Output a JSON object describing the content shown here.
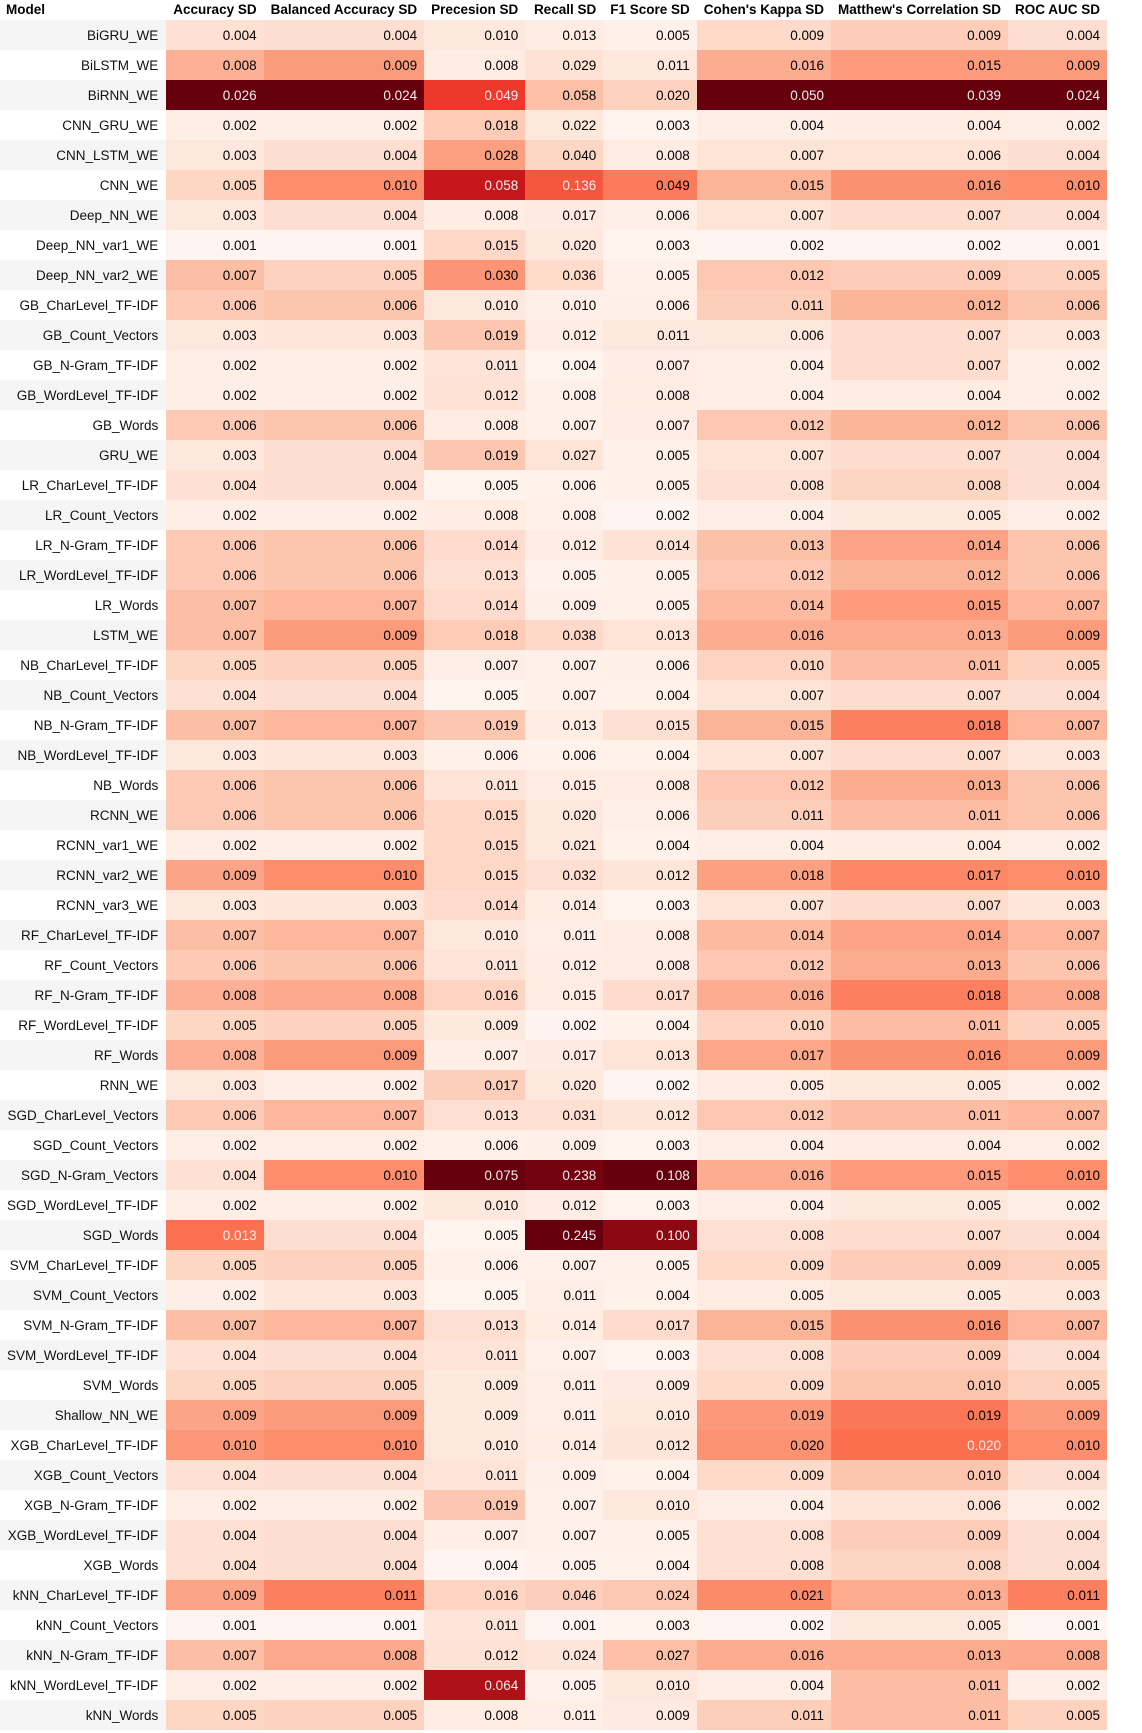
{
  "chart_data": {
    "type": "table",
    "columns": [
      "Model",
      "Accuracy SD",
      "Balanced Accuracy SD",
      "Precesion SD",
      "Recall SD",
      "F1 Score SD",
      "Cohen's Kappa SD",
      "Matthew's Correlation SD",
      "ROC AUC SD"
    ],
    "rows": [
      [
        "BiGRU_WE",
        "0.004",
        "0.004",
        "0.010",
        "0.013",
        "0.005",
        "0.009",
        "0.009",
        "0.004"
      ],
      [
        "BiLSTM_WE",
        "0.008",
        "0.009",
        "0.008",
        "0.029",
        "0.011",
        "0.016",
        "0.015",
        "0.009"
      ],
      [
        "BiRNN_WE",
        "0.026",
        "0.024",
        "0.049",
        "0.058",
        "0.020",
        "0.050",
        "0.039",
        "0.024"
      ],
      [
        "CNN_GRU_WE",
        "0.002",
        "0.002",
        "0.018",
        "0.022",
        "0.003",
        "0.004",
        "0.004",
        "0.002"
      ],
      [
        "CNN_LSTM_WE",
        "0.003",
        "0.004",
        "0.028",
        "0.040",
        "0.008",
        "0.007",
        "0.006",
        "0.004"
      ],
      [
        "CNN_WE",
        "0.005",
        "0.010",
        "0.058",
        "0.136",
        "0.049",
        "0.015",
        "0.016",
        "0.010"
      ],
      [
        "Deep_NN_WE",
        "0.003",
        "0.004",
        "0.008",
        "0.017",
        "0.006",
        "0.007",
        "0.007",
        "0.004"
      ],
      [
        "Deep_NN_var1_WE",
        "0.001",
        "0.001",
        "0.015",
        "0.020",
        "0.003",
        "0.002",
        "0.002",
        "0.001"
      ],
      [
        "Deep_NN_var2_WE",
        "0.007",
        "0.005",
        "0.030",
        "0.036",
        "0.005",
        "0.012",
        "0.009",
        "0.005"
      ],
      [
        "GB_CharLevel_TF-IDF",
        "0.006",
        "0.006",
        "0.010",
        "0.010",
        "0.006",
        "0.011",
        "0.012",
        "0.006"
      ],
      [
        "GB_Count_Vectors",
        "0.003",
        "0.003",
        "0.019",
        "0.012",
        "0.011",
        "0.006",
        "0.007",
        "0.003"
      ],
      [
        "GB_N-Gram_TF-IDF",
        "0.002",
        "0.002",
        "0.011",
        "0.004",
        "0.007",
        "0.004",
        "0.007",
        "0.002"
      ],
      [
        "GB_WordLevel_TF-IDF",
        "0.002",
        "0.002",
        "0.012",
        "0.008",
        "0.008",
        "0.004",
        "0.004",
        "0.002"
      ],
      [
        "GB_Words",
        "0.006",
        "0.006",
        "0.008",
        "0.007",
        "0.007",
        "0.012",
        "0.012",
        "0.006"
      ],
      [
        "GRU_WE",
        "0.003",
        "0.004",
        "0.019",
        "0.027",
        "0.005",
        "0.007",
        "0.007",
        "0.004"
      ],
      [
        "LR_CharLevel_TF-IDF",
        "0.004",
        "0.004",
        "0.005",
        "0.006",
        "0.005",
        "0.008",
        "0.008",
        "0.004"
      ],
      [
        "LR_Count_Vectors",
        "0.002",
        "0.002",
        "0.008",
        "0.008",
        "0.002",
        "0.004",
        "0.005",
        "0.002"
      ],
      [
        "LR_N-Gram_TF-IDF",
        "0.006",
        "0.006",
        "0.014",
        "0.012",
        "0.014",
        "0.013",
        "0.014",
        "0.006"
      ],
      [
        "LR_WordLevel_TF-IDF",
        "0.006",
        "0.006",
        "0.013",
        "0.005",
        "0.005",
        "0.012",
        "0.012",
        "0.006"
      ],
      [
        "LR_Words",
        "0.007",
        "0.007",
        "0.014",
        "0.009",
        "0.005",
        "0.014",
        "0.015",
        "0.007"
      ],
      [
        "LSTM_WE",
        "0.007",
        "0.009",
        "0.018",
        "0.038",
        "0.013",
        "0.016",
        "0.013",
        "0.009"
      ],
      [
        "NB_CharLevel_TF-IDF",
        "0.005",
        "0.005",
        "0.007",
        "0.007",
        "0.006",
        "0.010",
        "0.011",
        "0.005"
      ],
      [
        "NB_Count_Vectors",
        "0.004",
        "0.004",
        "0.005",
        "0.007",
        "0.004",
        "0.007",
        "0.007",
        "0.004"
      ],
      [
        "NB_N-Gram_TF-IDF",
        "0.007",
        "0.007",
        "0.019",
        "0.013",
        "0.015",
        "0.015",
        "0.018",
        "0.007"
      ],
      [
        "NB_WordLevel_TF-IDF",
        "0.003",
        "0.003",
        "0.006",
        "0.006",
        "0.004",
        "0.007",
        "0.007",
        "0.003"
      ],
      [
        "NB_Words",
        "0.006",
        "0.006",
        "0.011",
        "0.015",
        "0.008",
        "0.012",
        "0.013",
        "0.006"
      ],
      [
        "RCNN_WE",
        "0.006",
        "0.006",
        "0.015",
        "0.020",
        "0.006",
        "0.011",
        "0.011",
        "0.006"
      ],
      [
        "RCNN_var1_WE",
        "0.002",
        "0.002",
        "0.015",
        "0.021",
        "0.004",
        "0.004",
        "0.004",
        "0.002"
      ],
      [
        "RCNN_var2_WE",
        "0.009",
        "0.010",
        "0.015",
        "0.032",
        "0.012",
        "0.018",
        "0.017",
        "0.010"
      ],
      [
        "RCNN_var3_WE",
        "0.003",
        "0.003",
        "0.014",
        "0.014",
        "0.003",
        "0.007",
        "0.007",
        "0.003"
      ],
      [
        "RF_CharLevel_TF-IDF",
        "0.007",
        "0.007",
        "0.010",
        "0.011",
        "0.008",
        "0.014",
        "0.014",
        "0.007"
      ],
      [
        "RF_Count_Vectors",
        "0.006",
        "0.006",
        "0.011",
        "0.012",
        "0.008",
        "0.012",
        "0.013",
        "0.006"
      ],
      [
        "RF_N-Gram_TF-IDF",
        "0.008",
        "0.008",
        "0.016",
        "0.015",
        "0.017",
        "0.016",
        "0.018",
        "0.008"
      ],
      [
        "RF_WordLevel_TF-IDF",
        "0.005",
        "0.005",
        "0.009",
        "0.002",
        "0.004",
        "0.010",
        "0.011",
        "0.005"
      ],
      [
        "RF_Words",
        "0.008",
        "0.009",
        "0.007",
        "0.017",
        "0.013",
        "0.017",
        "0.016",
        "0.009"
      ],
      [
        "RNN_WE",
        "0.003",
        "0.002",
        "0.017",
        "0.020",
        "0.002",
        "0.005",
        "0.005",
        "0.002"
      ],
      [
        "SGD_CharLevel_Vectors",
        "0.006",
        "0.007",
        "0.013",
        "0.031",
        "0.012",
        "0.012",
        "0.011",
        "0.007"
      ],
      [
        "SGD_Count_Vectors",
        "0.002",
        "0.002",
        "0.006",
        "0.009",
        "0.003",
        "0.004",
        "0.004",
        "0.002"
      ],
      [
        "SGD_N-Gram_Vectors",
        "0.004",
        "0.010",
        "0.075",
        "0.238",
        "0.108",
        "0.016",
        "0.015",
        "0.010"
      ],
      [
        "SGD_WordLevel_TF-IDF",
        "0.002",
        "0.002",
        "0.010",
        "0.012",
        "0.003",
        "0.004",
        "0.005",
        "0.002"
      ],
      [
        "SGD_Words",
        "0.013",
        "0.004",
        "0.005",
        "0.245",
        "0.100",
        "0.008",
        "0.007",
        "0.004"
      ],
      [
        "SVM_CharLevel_TF-IDF",
        "0.005",
        "0.005",
        "0.006",
        "0.007",
        "0.005",
        "0.009",
        "0.009",
        "0.005"
      ],
      [
        "SVM_Count_Vectors",
        "0.002",
        "0.003",
        "0.005",
        "0.011",
        "0.004",
        "0.005",
        "0.005",
        "0.003"
      ],
      [
        "SVM_N-Gram_TF-IDF",
        "0.007",
        "0.007",
        "0.013",
        "0.014",
        "0.017",
        "0.015",
        "0.016",
        "0.007"
      ],
      [
        "SVM_WordLevel_TF-IDF",
        "0.004",
        "0.004",
        "0.011",
        "0.007",
        "0.003",
        "0.008",
        "0.009",
        "0.004"
      ],
      [
        "SVM_Words",
        "0.005",
        "0.005",
        "0.009",
        "0.011",
        "0.009",
        "0.009",
        "0.010",
        "0.005"
      ],
      [
        "Shallow_NN_WE",
        "0.009",
        "0.009",
        "0.009",
        "0.011",
        "0.010",
        "0.019",
        "0.019",
        "0.009"
      ],
      [
        "XGB_CharLevel_TF-IDF",
        "0.010",
        "0.010",
        "0.010",
        "0.014",
        "0.012",
        "0.020",
        "0.020",
        "0.010"
      ],
      [
        "XGB_Count_Vectors",
        "0.004",
        "0.004",
        "0.011",
        "0.009",
        "0.004",
        "0.009",
        "0.010",
        "0.004"
      ],
      [
        "XGB_N-Gram_TF-IDF",
        "0.002",
        "0.002",
        "0.019",
        "0.007",
        "0.010",
        "0.004",
        "0.006",
        "0.002"
      ],
      [
        "XGB_WordLevel_TF-IDF",
        "0.004",
        "0.004",
        "0.007",
        "0.007",
        "0.005",
        "0.008",
        "0.009",
        "0.004"
      ],
      [
        "XGB_Words",
        "0.004",
        "0.004",
        "0.004",
        "0.005",
        "0.004",
        "0.008",
        "0.008",
        "0.004"
      ],
      [
        "kNN_CharLevel_TF-IDF",
        "0.009",
        "0.011",
        "0.016",
        "0.046",
        "0.024",
        "0.021",
        "0.013",
        "0.011"
      ],
      [
        "kNN_Count_Vectors",
        "0.001",
        "0.001",
        "0.011",
        "0.001",
        "0.003",
        "0.002",
        "0.005",
        "0.001"
      ],
      [
        "kNN_N-Gram_TF-IDF",
        "0.007",
        "0.008",
        "0.012",
        "0.024",
        "0.027",
        "0.016",
        "0.013",
        "0.008"
      ],
      [
        "kNN_WordLevel_TF-IDF",
        "0.002",
        "0.002",
        "0.064",
        "0.005",
        "0.010",
        "0.004",
        "0.011",
        "0.002"
      ],
      [
        "kNN_Words",
        "0.005",
        "0.005",
        "0.008",
        "0.011",
        "0.009",
        "0.011",
        "0.011",
        "0.005"
      ]
    ],
    "colormap": "Reds",
    "color_scale": "per-column",
    "colors": {
      "low": "#fff5f0",
      "high": "#67000d"
    }
  }
}
